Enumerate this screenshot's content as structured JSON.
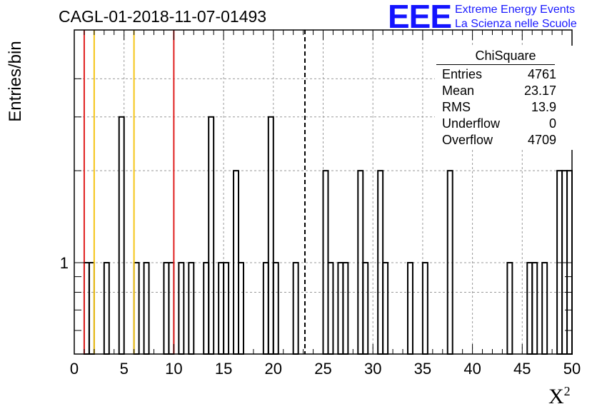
{
  "title": "CAGL-01-2018-11-07-01493",
  "logo": {
    "mark": "EEE",
    "line1": "Extreme Energy Events",
    "line2": "La Scienza nelle Scuole",
    "color": "#1414ff"
  },
  "stats_box": {
    "title": "ChiSquare",
    "rows": [
      {
        "key": "Entries",
        "value": "4761"
      },
      {
        "key": "Mean",
        "value": "23.17"
      },
      {
        "key": "RMS",
        "value": "13.9"
      },
      {
        "key": "Underflow",
        "value": "0"
      },
      {
        "key": "Overflow",
        "value": "4709"
      }
    ]
  },
  "chart_data": {
    "type": "histogram",
    "title": "CAGL-01-2018-11-07-01493",
    "xlabel": "X²",
    "ylabel": "Entries/bin",
    "xlim": [
      0,
      50
    ],
    "ylim_log": [
      0.5,
      5
    ],
    "y_scale": "log",
    "grid": true,
    "x_ticks": [
      0,
      5,
      10,
      15,
      20,
      25,
      30,
      35,
      40,
      45,
      50
    ],
    "y_tick_labels": [
      "1"
    ],
    "bin_width": 0.5,
    "bins": [
      {
        "x": 1.0,
        "y": 1
      },
      {
        "x": 1.5,
        "y": 1
      },
      {
        "x": 3.0,
        "y": 1
      },
      {
        "x": 4.5,
        "y": 3
      },
      {
        "x": 6.0,
        "y": 1
      },
      {
        "x": 7.0,
        "y": 1
      },
      {
        "x": 9.0,
        "y": 1
      },
      {
        "x": 9.5,
        "y": 1
      },
      {
        "x": 10.5,
        "y": 1
      },
      {
        "x": 11.5,
        "y": 1
      },
      {
        "x": 13.0,
        "y": 1
      },
      {
        "x": 13.5,
        "y": 3
      },
      {
        "x": 14.5,
        "y": 1
      },
      {
        "x": 15.0,
        "y": 1
      },
      {
        "x": 16.0,
        "y": 2
      },
      {
        "x": 16.5,
        "y": 1
      },
      {
        "x": 19.0,
        "y": 1
      },
      {
        "x": 19.5,
        "y": 3
      },
      {
        "x": 20.0,
        "y": 1
      },
      {
        "x": 22.0,
        "y": 1
      },
      {
        "x": 25.0,
        "y": 2
      },
      {
        "x": 25.5,
        "y": 1
      },
      {
        "x": 26.5,
        "y": 1
      },
      {
        "x": 27.0,
        "y": 1
      },
      {
        "x": 28.5,
        "y": 2
      },
      {
        "x": 29.0,
        "y": 1
      },
      {
        "x": 30.5,
        "y": 2
      },
      {
        "x": 31.0,
        "y": 1
      },
      {
        "x": 33.5,
        "y": 1
      },
      {
        "x": 35.0,
        "y": 1
      },
      {
        "x": 37.5,
        "y": 2
      },
      {
        "x": 43.5,
        "y": 1
      },
      {
        "x": 45.5,
        "y": 1
      },
      {
        "x": 46.0,
        "y": 1
      },
      {
        "x": 47.0,
        "y": 1
      },
      {
        "x": 48.5,
        "y": 2
      },
      {
        "x": 49.0,
        "y": 2
      },
      {
        "x": 49.5,
        "y": 2
      }
    ],
    "reference_lines": [
      {
        "x": 1.0,
        "color": "#e02020",
        "style": "solid"
      },
      {
        "x": 2.0,
        "color": "#f5c518",
        "style": "solid"
      },
      {
        "x": 6.0,
        "color": "#f5c518",
        "style": "solid"
      },
      {
        "x": 10.0,
        "color": "#e02020",
        "style": "solid"
      },
      {
        "x": 23.17,
        "color": "#000000",
        "style": "dashed"
      }
    ]
  }
}
